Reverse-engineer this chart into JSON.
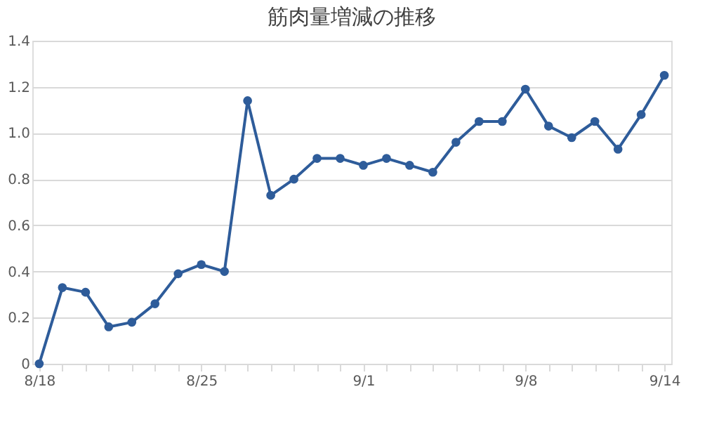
{
  "chart_data": {
    "type": "line",
    "title": "筋肉量増減の推移",
    "categories": [
      "8/18",
      null,
      null,
      null,
      null,
      null,
      null,
      "8/25",
      null,
      null,
      null,
      null,
      null,
      null,
      "9/1",
      null,
      null,
      null,
      null,
      null,
      null,
      "9/8",
      null,
      null,
      null,
      null,
      null,
      "9/14"
    ],
    "series": [
      {
        "color": "#2e5c9a",
        "values": [
          0,
          0.33,
          0.31,
          0.16,
          0.18,
          0.26,
          0.39,
          0.43,
          0.4,
          1.14,
          0.73,
          0.8,
          0.89,
          0.89,
          0.86,
          0.89,
          0.86,
          0.83,
          0.96,
          1.05,
          1.05,
          1.19,
          1.03,
          0.98,
          1.05,
          0.93,
          1.08,
          1.25
        ]
      }
    ],
    "ylim": [
      0,
      1.4
    ],
    "yticks": [
      0,
      0.2,
      0.4,
      0.6,
      0.8,
      {
        "value": 1,
        "label": "1.0"
      },
      1.2,
      1.4
    ],
    "grid": "y",
    "marker": "circle",
    "line_style": "solid"
  }
}
